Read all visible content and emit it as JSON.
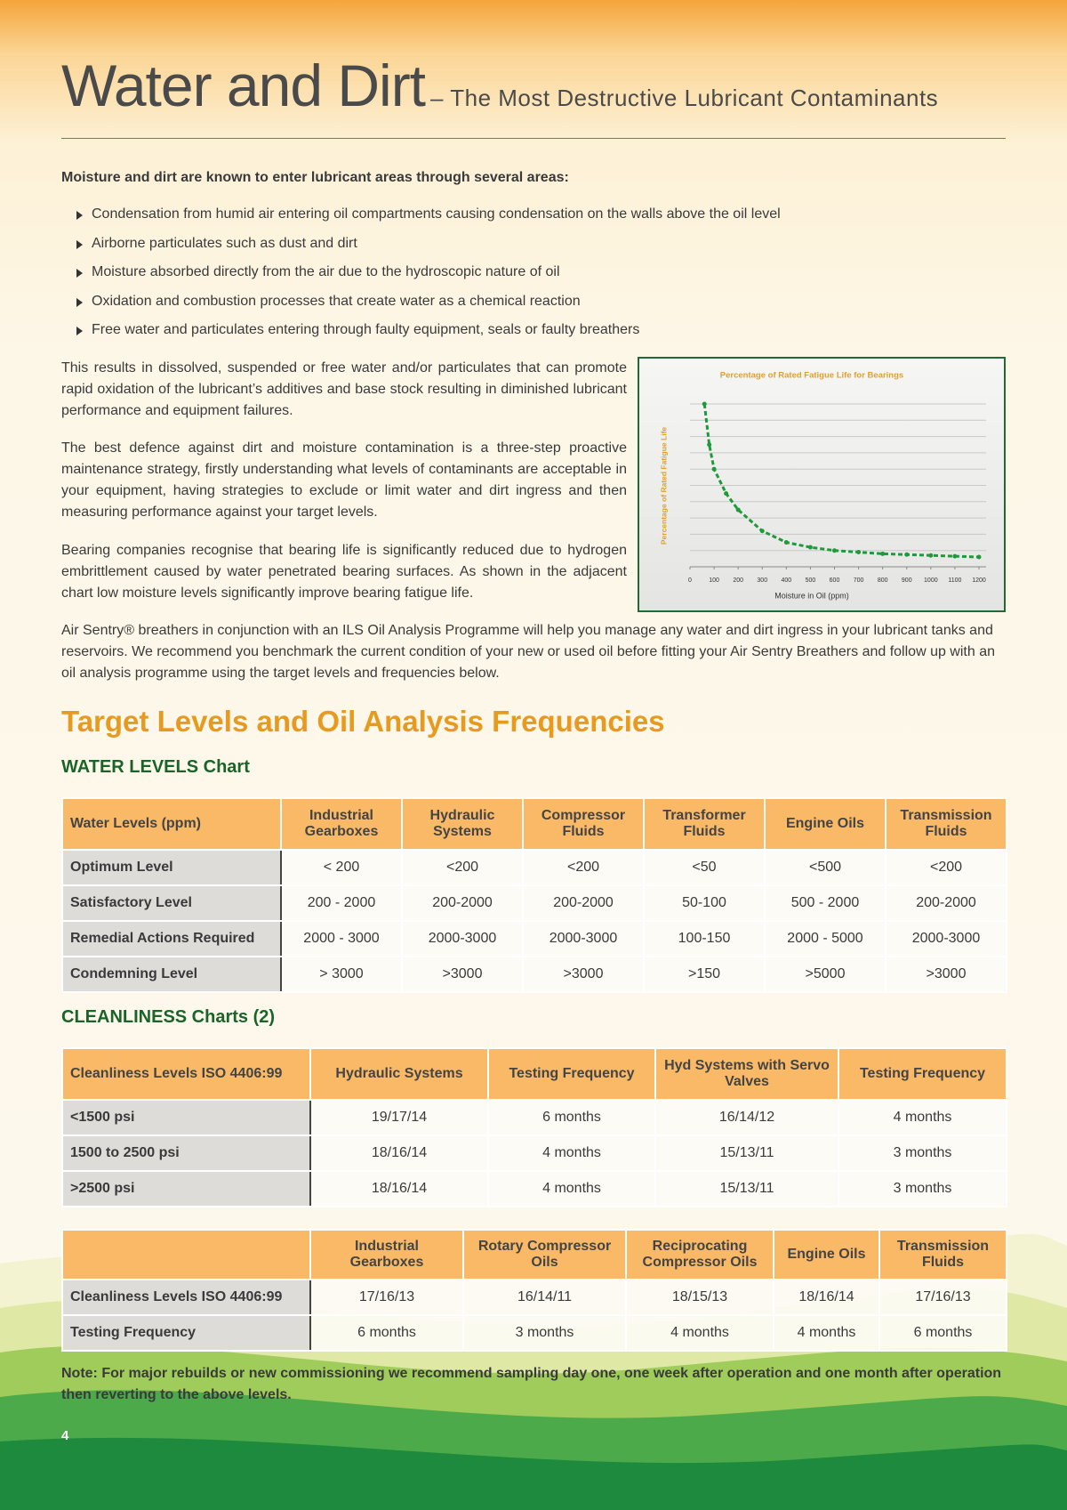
{
  "header": {
    "title": "Water and Dirt",
    "subtitle": "– The Most Destructive Lubricant Contaminants"
  },
  "intro": {
    "lead": "Moisture and dirt are known to enter lubricant areas through several areas:",
    "bullets": [
      "Condensation from humid air entering oil compartments causing condensation on the walls above the oil level",
      "Airborne particulates such as dust and dirt",
      "Moisture absorbed directly from the air due to the hydroscopic nature of oil",
      "Oxidation and combustion processes that create water as a chemical reaction",
      "Free water and particulates entering through faulty equipment, seals or faulty breathers"
    ]
  },
  "paragraphs": [
    "This results in dissolved, suspended or free water and/or particulates that can promote rapid oxidation of the lubricant’s additives and base stock resulting in diminished lubricant performance and equipment failures.",
    "The best defence against dirt and moisture contamination is a three-step proactive maintenance strategy, firstly understanding what levels of contaminants are acceptable in your equipment, having strategies to exclude or limit water and dirt ingress and then measuring performance against your target levels.",
    "Bearing companies recognise that bearing life is significantly reduced due to hydrogen embrittlement caused by water penetrated bearing surfaces. As shown in the adjacent chart low moisture levels significantly improve bearing fatigue life.",
    "Air Sentry® breathers in conjunction with an ILS Oil Analysis Programme will help you manage any water and dirt ingress in your lubricant tanks and reservoirs. We recommend you benchmark the current condition of your new or used oil before fitting your Air Sentry Breathers and follow up with an oil analysis programme using the target levels and frequencies below."
  ],
  "chart_data": {
    "type": "line",
    "title": "Percentage of Rated Fatigue Life for Bearings",
    "x_label": "Moisture in Oil (ppm)",
    "y_label": "Percentage of Rated Fatigue Life",
    "x": [
      60,
      80,
      100,
      150,
      200,
      300,
      400,
      500,
      600,
      700,
      800,
      900,
      1000,
      1100,
      1200
    ],
    "values": [
      100,
      75,
      60,
      45,
      35,
      22,
      15,
      12,
      10,
      9,
      8,
      7.5,
      7,
      6.5,
      6
    ],
    "color": "#1e9a3a",
    "xlim": [
      0,
      1200
    ],
    "xticks": [
      0,
      100,
      200,
      300,
      400,
      500,
      600,
      700,
      800,
      900,
      1000,
      1100,
      1200
    ],
    "ylim": [
      0,
      100
    ],
    "grid": true
  },
  "section": {
    "title": "Target Levels and Oil Analysis Frequencies",
    "water_heading": "WATER LEVELS Chart",
    "clean_heading": "CLEANLINESS Charts (2)"
  },
  "tables": {
    "water": {
      "header": [
        "Water Levels (ppm)",
        "Industrial Gearboxes",
        "Hydraulic Systems",
        "Compressor Fluids",
        "Transformer Fluids",
        "Engine Oils",
        "Transmission Fluids"
      ],
      "rows": [
        [
          "Optimum Level",
          "< 200",
          "<200",
          "<200",
          "<50",
          "<500",
          "<200"
        ],
        [
          "Satisfactory Level",
          "200 - 2000",
          "200-2000",
          "200-2000",
          "50-100",
          "500 - 2000",
          "200-2000"
        ],
        [
          "Remedial Actions Required",
          "2000 - 3000",
          "2000-3000",
          "2000-3000",
          "100-150",
          "2000 - 5000",
          "2000-3000"
        ],
        [
          "Condemning Level",
          "> 3000",
          ">3000",
          ">3000",
          ">150",
          ">5000",
          ">3000"
        ]
      ]
    },
    "clean1": {
      "header": [
        "Cleanliness Levels ISO 4406:99",
        "Hydraulic Systems",
        "Testing Frequency",
        "Hyd Systems with Servo Valves",
        "Testing Frequency"
      ],
      "rows": [
        [
          "<1500 psi",
          "19/17/14",
          "6 months",
          "16/14/12",
          "4 months"
        ],
        [
          "1500 to 2500 psi",
          "18/16/14",
          "4 months",
          "15/13/11",
          "3 months"
        ],
        [
          ">2500 psi",
          "18/16/14",
          "4 months",
          "15/13/11",
          "3 months"
        ]
      ]
    },
    "clean2": {
      "header": [
        null,
        "Industrial Gearboxes",
        "Rotary Compressor Oils",
        "Reciprocating Compressor Oils",
        "Engine Oils",
        "Transmission Fluids"
      ],
      "rows": [
        [
          "Cleanliness Levels ISO 4406:99",
          "17/16/13",
          "16/14/11",
          "18/15/13",
          "18/16/14",
          "17/16/13"
        ],
        [
          "Testing Frequency",
          "6 months",
          "3 months",
          "4 months",
          "4 months",
          "6 months"
        ]
      ]
    }
  },
  "note": "Note: For major rebuilds or new commissioning we recommend sampling day one, one week after operation and one month after operation then reverting to the above levels.",
  "page_number": "4"
}
